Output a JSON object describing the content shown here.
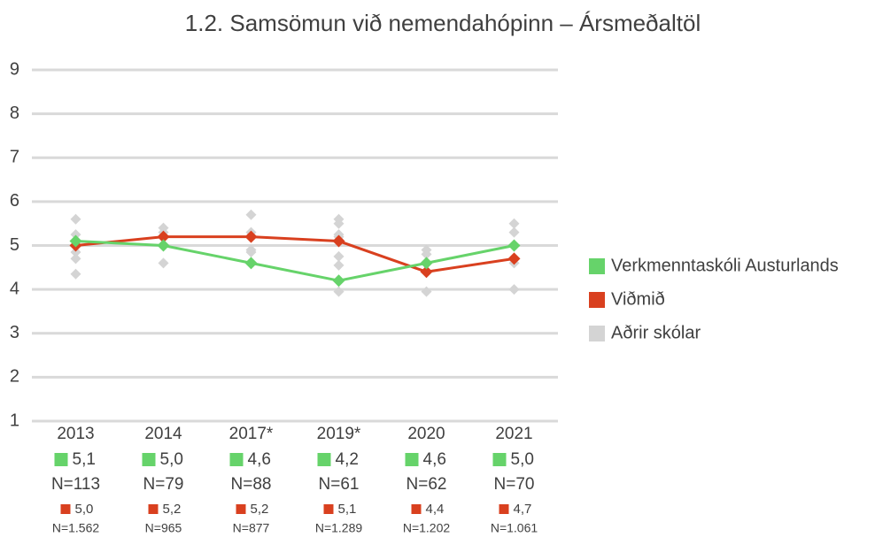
{
  "chart_data": {
    "type": "line",
    "title": "1.2. Samsömun við nemendahópinn – Ársmeðaltöl",
    "categories": [
      "2013",
      "2014",
      "2017*",
      "2019*",
      "2020",
      "2021"
    ],
    "ylim": [
      1,
      9
    ],
    "yticks": [
      1,
      2,
      3,
      4,
      5,
      6,
      7,
      8,
      9
    ],
    "grid": true,
    "series": [
      {
        "name": "Verkmenntaskóli Austurlands",
        "color": "#66d36a",
        "values": [
          5.1,
          5.0,
          4.6,
          4.2,
          4.6,
          5.0
        ],
        "value_labels": [
          "5,1",
          "5,0",
          "4,6",
          "4,2",
          "4,6",
          "5,0"
        ],
        "n_labels": [
          "N=113",
          "N=79",
          "N=88",
          "N=61",
          "N=62",
          "N=70"
        ]
      },
      {
        "name": "Viðmið",
        "color": "#d9401f",
        "values": [
          5.0,
          5.2,
          5.2,
          5.1,
          4.4,
          4.7
        ],
        "value_labels": [
          "5,0",
          "5,2",
          "5,2",
          "5,1",
          "4,4",
          "4,7"
        ],
        "n_labels": [
          "N=1.562",
          "N=965",
          "N=877",
          "N=1.289",
          "N=1.202",
          "N=1.061"
        ]
      },
      {
        "name": "Aðrir skólar",
        "color": "#d4d4d4",
        "values": [
          [
            5.6,
            5.25,
            5.0,
            4.85,
            4.7,
            4.35
          ],
          [
            5.4,
            5.3,
            5.0,
            4.6
          ],
          [
            5.7,
            5.3,
            4.9,
            4.85,
            4.6
          ],
          [
            5.6,
            5.5,
            5.25,
            5.2,
            4.75,
            4.55,
            3.95
          ],
          [
            4.9,
            4.8,
            4.6,
            4.4,
            3.95
          ],
          [
            5.5,
            5.3,
            5.0,
            4.6,
            4.0
          ]
        ]
      }
    ]
  }
}
